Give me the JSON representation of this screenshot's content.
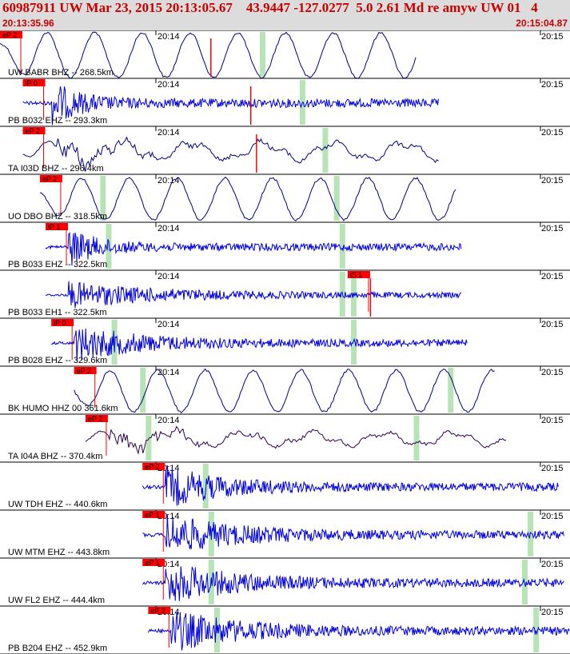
{
  "header": {
    "title": "60987911 UW Mar 23, 2015 20:13:05.67    43.9447 -127.0277  5.0 2.61 Md re amyw UW 01   4",
    "start_time": "20:13:35.96",
    "end_time": "20:15:04.87"
  },
  "colors": {
    "header_bg": "#dcdcdc",
    "title": "#c80000",
    "pick": "#ff0000",
    "highlight": "#b7e3b7"
  },
  "tick_labels": {
    "first": "20:14",
    "second": "20:15"
  },
  "traces": [
    {
      "label": "UW BABR BHZ -- 268.5km",
      "picks": [
        "eP 2"
      ],
      "color": "#000080",
      "kind": "long",
      "amp": 28,
      "start": 0.0,
      "end": 0.73,
      "onset": 0.02,
      "marker": 0.37,
      "pick": 0.0,
      "coda": 0.04,
      "green": [
        0.46
      ]
    },
    {
      "label": "PB B032 EHZ -- 293.3km",
      "picks": [
        "iP 0"
      ],
      "color": "#0000dd",
      "kind": "hf",
      "amp": 30,
      "start": 0.04,
      "end": 0.77,
      "onset": 0.09,
      "marker": 0.44,
      "pick": 0.04,
      "coda": 0.05,
      "green": [
        0.53
      ]
    },
    {
      "label": "TA I03D BHZ -- 296.4km",
      "picks": [
        "eP 2"
      ],
      "color": "#000080",
      "kind": "mid",
      "amp": 24,
      "start": 0.04,
      "end": 0.77,
      "onset": 0.1,
      "marker": 0.45,
      "pick": 0.04,
      "coda": 0.08,
      "green": [
        0.57
      ]
    },
    {
      "label": "UO DBO BHZ -- 318.5km",
      "picks": [
        "eP 2"
      ],
      "color": "#000080",
      "kind": "long",
      "amp": 26,
      "start": 0.07,
      "end": 0.8,
      "onset": 0.11,
      "marker": null,
      "pick": 0.07,
      "coda": 0.07,
      "green": [
        0.18,
        0.59
      ]
    },
    {
      "label": "PB B033 EHZ -- 322.5km",
      "picks": [
        "iP 1"
      ],
      "color": "#0000dd",
      "kind": "hf",
      "amp": 26,
      "start": 0.08,
      "end": 0.81,
      "onset": 0.12,
      "marker": null,
      "pick": 0.08,
      "coda": 0.05,
      "green": [
        0.19,
        0.6
      ]
    },
    {
      "label": "PB B033 EH1 -- 322.5km",
      "picks": [
        "iS 1"
      ],
      "color": "#0000dd",
      "kind": "hf",
      "amp": 18,
      "start": 0.08,
      "end": 0.81,
      "onset": 0.12,
      "marker": 0.65,
      "pick": 0.61,
      "coda": 0.16,
      "green": [
        0.6,
        0.62
      ]
    },
    {
      "label": "PB B028 EHZ -- 329.6km",
      "picks": [
        "iP 0"
      ],
      "color": "#0000dd",
      "kind": "hf",
      "amp": 24,
      "start": 0.09,
      "end": 0.82,
      "onset": 0.13,
      "marker": null,
      "pick": 0.09,
      "coda": 0.12,
      "green": [
        0.2,
        0.62
      ]
    },
    {
      "label": "BK HUMO HHZ 00 361.6km",
      "picks": [
        "eP 2"
      ],
      "color": "#000080",
      "kind": "long",
      "amp": 26,
      "start": 0.13,
      "end": 0.87,
      "onset": 0.17,
      "marker": null,
      "pick": 0.13,
      "coda": 0.1,
      "green": [
        0.25,
        0.79
      ]
    },
    {
      "label": "TA I04A BHZ -- 370.4km",
      "picks": [
        "eP 2"
      ],
      "color": "#300050",
      "kind": "mid",
      "amp": 18,
      "start": 0.15,
      "end": 0.89,
      "onset": 0.19,
      "marker": null,
      "pick": 0.15,
      "coda": 0.12,
      "green": [
        0.26,
        0.73
      ]
    },
    {
      "label": "UW TDH EHZ -- 440.6km",
      "picks": [
        "eP 2"
      ],
      "color": "#0000dd",
      "kind": "hf",
      "amp": 28,
      "start": 0.25,
      "end": 0.98,
      "onset": 0.29,
      "marker": null,
      "pick": 0.25,
      "coda": 0.1,
      "green": [
        0.36
      ]
    },
    {
      "label": "UW MTM EHZ -- 443.8km",
      "picks": [
        "eP 1"
      ],
      "color": "#0000dd",
      "kind": "hf",
      "amp": 28,
      "start": 0.25,
      "end": 0.99,
      "onset": 0.29,
      "marker": null,
      "pick": 0.25,
      "coda": 0.12,
      "green": [
        0.37,
        0.93
      ]
    },
    {
      "label": "UW FL2 EHZ -- 444.4km",
      "picks": [
        "eP 1"
      ],
      "color": "#0000dd",
      "kind": "hf",
      "amp": 28,
      "start": 0.25,
      "end": 0.99,
      "onset": 0.29,
      "marker": null,
      "pick": 0.25,
      "coda": 0.12,
      "green": [
        0.37,
        0.92
      ]
    },
    {
      "label": "PB B204 EHZ -- 452.9km",
      "picks": [
        "eP 2"
      ],
      "color": "#0000dd",
      "kind": "hf",
      "amp": 28,
      "start": 0.26,
      "end": 1.0,
      "onset": 0.3,
      "marker": null,
      "pick": 0.26,
      "coda": 0.12,
      "green": [
        0.38,
        0.94
      ]
    }
  ]
}
